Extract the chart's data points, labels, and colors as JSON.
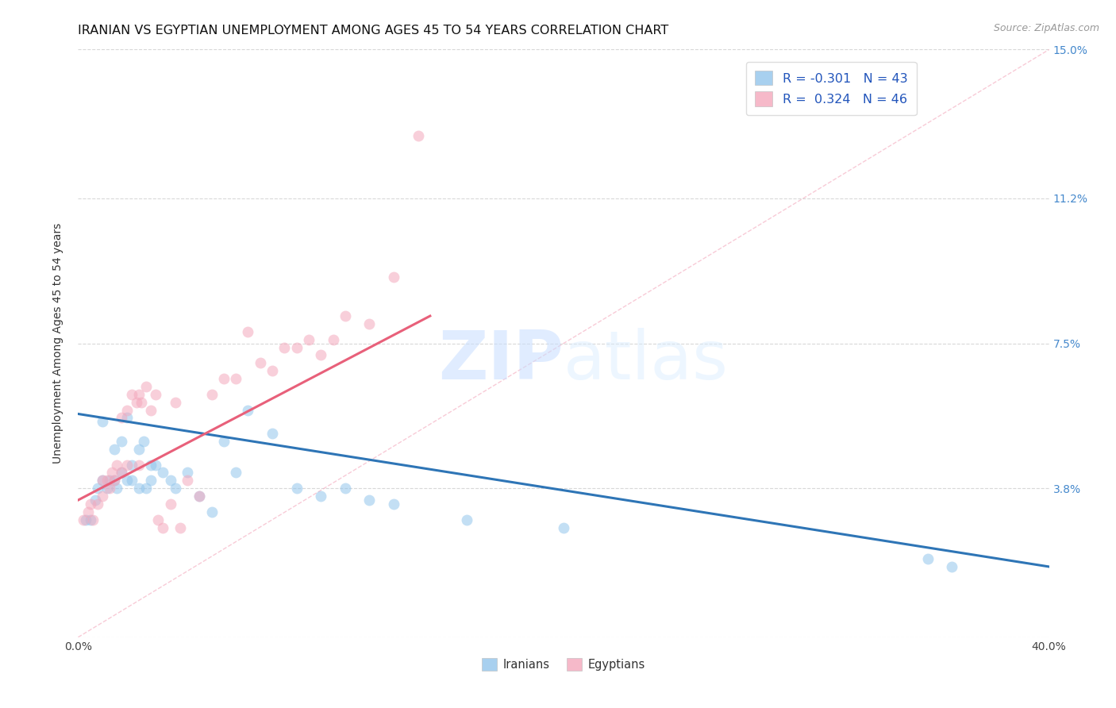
{
  "title": "IRANIAN VS EGYPTIAN UNEMPLOYMENT AMONG AGES 45 TO 54 YEARS CORRELATION CHART",
  "source": "Source: ZipAtlas.com",
  "ylabel": "Unemployment Among Ages 45 to 54 years",
  "xlim": [
    0.0,
    0.4
  ],
  "ylim": [
    0.0,
    0.15
  ],
  "xtick_pos": [
    0.0,
    0.1,
    0.2,
    0.3,
    0.4
  ],
  "xtick_labels": [
    "0.0%",
    "",
    "",
    "",
    "40.0%"
  ],
  "ytick_positions": [
    0.0,
    0.038,
    0.075,
    0.112,
    0.15
  ],
  "ytick_labels_right": [
    "",
    "3.8%",
    "7.5%",
    "11.2%",
    "15.0%"
  ],
  "iranians_R": "-0.301",
  "iranians_N": "43",
  "egyptians_R": "0.324",
  "egyptians_N": "46",
  "iranian_color": "#92C5EC",
  "egyptian_color": "#F4A8BC",
  "iranian_line_color": "#2E75B6",
  "egyptian_line_color": "#E8607A",
  "diagonal_color": "#F4A8BC",
  "background_color": "#FFFFFF",
  "watermark_zip": "ZIP",
  "watermark_atlas": "atlas",
  "grid_color": "#C8C8C8",
  "scatter_size": 100,
  "scatter_alpha": 0.55,
  "title_fontsize": 11.5,
  "label_fontsize": 10,
  "tick_fontsize": 10,
  "iranians_x": [
    0.003,
    0.005,
    0.007,
    0.008,
    0.01,
    0.01,
    0.012,
    0.013,
    0.015,
    0.015,
    0.016,
    0.018,
    0.018,
    0.02,
    0.02,
    0.022,
    0.022,
    0.025,
    0.025,
    0.027,
    0.028,
    0.03,
    0.03,
    0.032,
    0.035,
    0.038,
    0.04,
    0.045,
    0.05,
    0.055,
    0.06,
    0.065,
    0.07,
    0.08,
    0.09,
    0.1,
    0.11,
    0.12,
    0.13,
    0.16,
    0.2,
    0.35,
    0.36
  ],
  "iranians_y": [
    0.03,
    0.03,
    0.035,
    0.038,
    0.04,
    0.055,
    0.038,
    0.04,
    0.04,
    0.048,
    0.038,
    0.042,
    0.05,
    0.04,
    0.056,
    0.04,
    0.044,
    0.038,
    0.048,
    0.05,
    0.038,
    0.04,
    0.044,
    0.044,
    0.042,
    0.04,
    0.038,
    0.042,
    0.036,
    0.032,
    0.05,
    0.042,
    0.058,
    0.052,
    0.038,
    0.036,
    0.038,
    0.035,
    0.034,
    0.03,
    0.028,
    0.02,
    0.018
  ],
  "egyptians_x": [
    0.002,
    0.004,
    0.005,
    0.006,
    0.008,
    0.01,
    0.01,
    0.012,
    0.013,
    0.014,
    0.015,
    0.016,
    0.018,
    0.018,
    0.02,
    0.02,
    0.022,
    0.024,
    0.025,
    0.025,
    0.026,
    0.028,
    0.03,
    0.032,
    0.033,
    0.035,
    0.038,
    0.04,
    0.042,
    0.045,
    0.05,
    0.055,
    0.06,
    0.065,
    0.07,
    0.075,
    0.08,
    0.085,
    0.09,
    0.095,
    0.1,
    0.105,
    0.11,
    0.12,
    0.13,
    0.14
  ],
  "egyptians_y": [
    0.03,
    0.032,
    0.034,
    0.03,
    0.034,
    0.036,
    0.04,
    0.04,
    0.038,
    0.042,
    0.04,
    0.044,
    0.042,
    0.056,
    0.044,
    0.058,
    0.062,
    0.06,
    0.044,
    0.062,
    0.06,
    0.064,
    0.058,
    0.062,
    0.03,
    0.028,
    0.034,
    0.06,
    0.028,
    0.04,
    0.036,
    0.062,
    0.066,
    0.066,
    0.078,
    0.07,
    0.068,
    0.074,
    0.074,
    0.076,
    0.072,
    0.076,
    0.082,
    0.08,
    0.092,
    0.128
  ],
  "iranian_trend_x": [
    0.0,
    0.4
  ],
  "iranian_trend_y": [
    0.057,
    0.018
  ],
  "egyptian_trend_x": [
    0.0,
    0.145
  ],
  "egyptian_trend_y": [
    0.035,
    0.082
  ]
}
